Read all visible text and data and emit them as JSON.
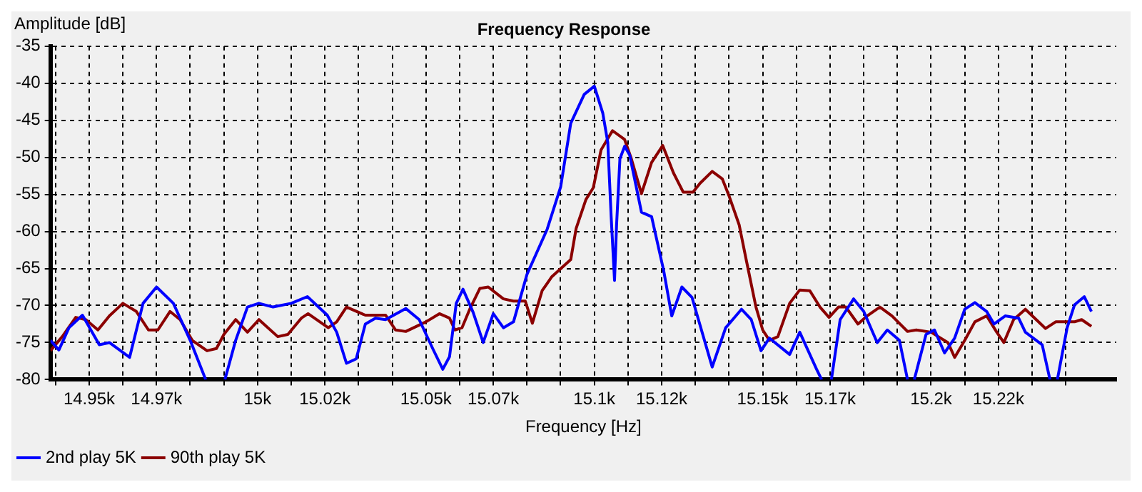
{
  "chart_data": {
    "type": "line",
    "title": "Frequency Response",
    "xlabel": "Frequency [Hz]",
    "ylabel": "Amplitude [dB]",
    "xlim": [
      14938.5,
      15255
    ],
    "xticks": [
      {
        "value": 14940,
        "label": null
      },
      {
        "value": 14950,
        "label": "14.95k"
      },
      {
        "value": 14960,
        "label": null
      },
      {
        "value": 14970,
        "label": "14.97k"
      },
      {
        "value": 14980,
        "label": null
      },
      {
        "value": 14990,
        "label": null
      },
      {
        "value": 15000,
        "label": "15k"
      },
      {
        "value": 15010,
        "label": null
      },
      {
        "value": 15020,
        "label": "15.02k"
      },
      {
        "value": 15030,
        "label": null
      },
      {
        "value": 15040,
        "label": null
      },
      {
        "value": 15050,
        "label": "15.05k"
      },
      {
        "value": 15060,
        "label": null
      },
      {
        "value": 15070,
        "label": "15.07k"
      },
      {
        "value": 15080,
        "label": null
      },
      {
        "value": 15090,
        "label": null
      },
      {
        "value": 15100,
        "label": "15.1k"
      },
      {
        "value": 15110,
        "label": null
      },
      {
        "value": 15120,
        "label": "15.12k"
      },
      {
        "value": 15130,
        "label": null
      },
      {
        "value": 15140,
        "label": null
      },
      {
        "value": 15150,
        "label": "15.15k"
      },
      {
        "value": 15160,
        "label": null
      },
      {
        "value": 15170,
        "label": "15.17k"
      },
      {
        "value": 15180,
        "label": null
      },
      {
        "value": 15190,
        "label": null
      },
      {
        "value": 15200,
        "label": "15.2k"
      },
      {
        "value": 15210,
        "label": null
      },
      {
        "value": 15220,
        "label": "15.22k"
      },
      {
        "value": 15230,
        "label": null
      },
      {
        "value": 15240,
        "label": null
      }
    ],
    "ylim": [
      -80,
      -35
    ],
    "yticks": [
      -80,
      -75,
      -70,
      -65,
      -60,
      -55,
      -50,
      -45,
      -40,
      -35
    ],
    "grid": true,
    "legend": "bottom left",
    "marker": "none",
    "line_style": "solid",
    "series": [
      {
        "name": "2nd play 5K",
        "color": "#0000ff",
        "x": [
          14938.5,
          14941,
          14944,
          14948,
          14953,
          14956,
          14962,
          14966,
          14970,
          14975,
          14980,
          14984.6,
          14987.5,
          14990.3,
          14993.5,
          14997,
          15000.4,
          15004.6,
          15010,
          15014.8,
          15020.7,
          15023.5,
          15026.4,
          15029.3,
          15032,
          15035,
          15038,
          15044,
          15048,
          15052,
          15055,
          15057,
          15059,
          15061,
          15064,
          15067,
          15070,
          15073,
          15076,
          15080,
          15086,
          15090,
          15093,
          15097,
          15100,
          15102.5,
          15104,
          15105,
          15106,
          15106.6,
          15107.6,
          15109,
          15110.5,
          15114,
          15117,
          15120.6,
          15123,
          15126,
          15129,
          15135,
          15139,
          15143.7,
          15146.6,
          15149.5,
          15152,
          15158,
          15161,
          15166,
          15167.5,
          15169,
          15170.4,
          15173,
          15177,
          15180,
          15184,
          15187,
          15190.6,
          15193,
          15194,
          15195,
          15198.5,
          15201,
          15204,
          15207,
          15210,
          15213,
          15216.5,
          15218.7,
          15222,
          15226,
          15228,
          15233,
          15235.3,
          15236.5,
          15237.5,
          15240.4,
          15242.6,
          15245.5,
          15247.6
        ],
        "values": [
          -74.7,
          -76,
          -73,
          -71.3,
          -75.3,
          -75,
          -77,
          -69.7,
          -67.5,
          -69.7,
          -74.7,
          -80,
          null,
          -80,
          -74.7,
          -70.2,
          -69.7,
          -70.2,
          -69.7,
          -68.8,
          -71.3,
          -73.6,
          -77.8,
          -77.2,
          -72.5,
          -71.7,
          -71.9,
          -70.4,
          -71.9,
          -75.8,
          -78.6,
          -76.9,
          -69.7,
          -67.8,
          -70.9,
          -75,
          -71.1,
          -73,
          -72.2,
          -65.8,
          -59.7,
          -54,
          -45.4,
          -41.5,
          -40.4,
          -44,
          -48,
          -58,
          -66.6,
          -59.2,
          -50.2,
          -48.5,
          -49.7,
          -57.4,
          -58,
          -65.3,
          -71.4,
          -67.5,
          -68.9,
          -78.3,
          -73,
          -70.5,
          -71.9,
          -76.1,
          -74.4,
          -76.6,
          -73.6,
          -78.6,
          -80,
          null,
          -80,
          -71.9,
          -69.1,
          -70.8,
          -75,
          -73.3,
          -74.7,
          -80,
          null,
          -80,
          -73.9,
          -73.3,
          -76.4,
          -74.4,
          -70.5,
          -69.6,
          -70.8,
          -72.5,
          -71.4,
          -71.7,
          -73.6,
          -75.3,
          -80,
          null,
          -80,
          -73,
          -69.9,
          -68.8,
          -70.8
        ]
      },
      {
        "name": "90th play 5K",
        "color": "#8b0000",
        "x": [
          14938.5,
          14942,
          14946,
          14949,
          14952.6,
          14956,
          14960,
          14964,
          14967.6,
          14970.4,
          14974,
          14977,
          14980.6,
          14985,
          14987.8,
          14990,
          14993.5,
          14997,
          15000.4,
          15006,
          15009,
          15013,
          15015,
          15021,
          15023.5,
          15026.4,
          15032,
          15038,
          15041,
          15044,
          15050,
          15054,
          15057,
          15058.6,
          15060.7,
          15063,
          15066,
          15068.5,
          15073,
          15076,
          15079.5,
          15081.6,
          15084.5,
          15087.4,
          15093,
          15094.6,
          15097.5,
          15099.7,
          15102,
          15105.4,
          15109,
          15111,
          15114,
          15117,
          15120.3,
          15123.5,
          15126.4,
          15129.3,
          15131.4,
          15135,
          15138,
          15140,
          15143,
          15145,
          15148,
          15150,
          15152,
          15154.5,
          15158,
          15161,
          15164,
          15167,
          15169.7,
          15172.5,
          15174.7,
          15178.3,
          15181,
          15184.8,
          15188.4,
          15193,
          15195.6,
          15200,
          15205,
          15207,
          15210,
          15213,
          15216.5,
          15219.5,
          15221.6,
          15224.5,
          15228,
          15234,
          15237,
          15242.6,
          15244.7,
          15247.6
        ],
        "values": [
          -76.1,
          -74.2,
          -71.6,
          -71.9,
          -73.3,
          -71.4,
          -69.7,
          -70.8,
          -73.3,
          -73.3,
          -70.8,
          -71.9,
          -74.7,
          -76.1,
          -75.8,
          -73.9,
          -71.9,
          -73.6,
          -71.9,
          -74.2,
          -73.9,
          -71.7,
          -71.1,
          -73,
          -72.2,
          -70.2,
          -71.3,
          -71.3,
          -73.3,
          -73.5,
          -72.2,
          -71.1,
          -71.7,
          -73.3,
          -73,
          -70.5,
          -67.7,
          -67.5,
          -69.1,
          -69.4,
          -69.4,
          -72.4,
          -68,
          -66.1,
          -63.8,
          -59.6,
          -55.7,
          -54.1,
          -49,
          -46.4,
          -47.6,
          -50.2,
          -54.9,
          -50.7,
          -48.4,
          -52.1,
          -54.7,
          -54.7,
          -53.5,
          -51.9,
          -52.9,
          -55.2,
          -59.1,
          -63.6,
          -70.2,
          -73.3,
          -74.7,
          -74.2,
          -69.7,
          -67.9,
          -68,
          -70.2,
          -71.6,
          -70.2,
          -70.2,
          -72.5,
          -71.4,
          -70.2,
          -71.4,
          -73.5,
          -73.3,
          -73.6,
          -75,
          -77,
          -74.7,
          -72.2,
          -71.4,
          -73.6,
          -75,
          -71.9,
          -70.5,
          -73.1,
          -72.2,
          -72.2,
          -71.9,
          -72.8
        ]
      }
    ]
  }
}
